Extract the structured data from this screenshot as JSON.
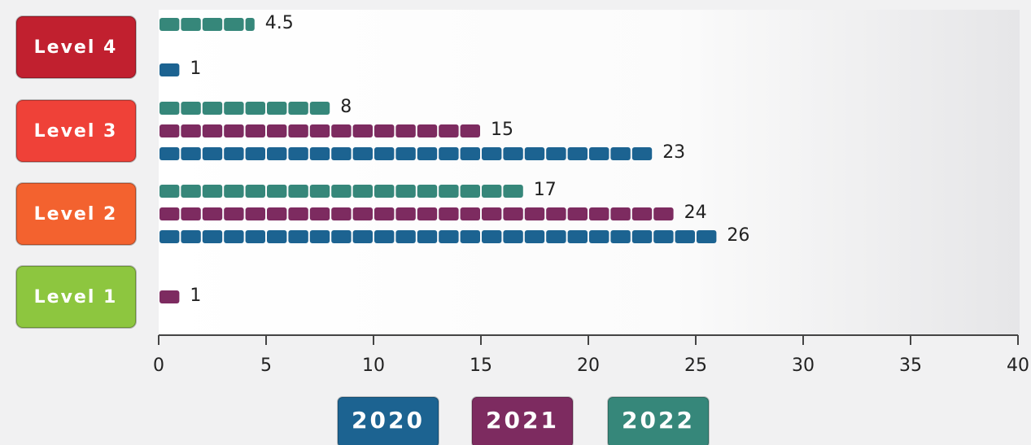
{
  "chart_data": {
    "type": "bar",
    "orientation": "horizontal",
    "categories": [
      "Level 4",
      "Level 3",
      "Level 2",
      "Level 1"
    ],
    "category_colors": [
      "#c1202f",
      "#ef4138",
      "#f3622f",
      "#8dc63f"
    ],
    "series": [
      {
        "name": "2022",
        "color": "#36877a",
        "values": [
          4.5,
          8,
          17,
          null
        ]
      },
      {
        "name": "2021",
        "color": "#7d2b60",
        "values": [
          null,
          15,
          24,
          1
        ]
      },
      {
        "name": "2020",
        "color": "#1c6391",
        "values": [
          1,
          23,
          26,
          null
        ]
      }
    ],
    "xlim": [
      0,
      40
    ],
    "xticks": [
      0,
      5,
      10,
      15,
      20,
      25,
      30,
      35,
      40
    ]
  }
}
